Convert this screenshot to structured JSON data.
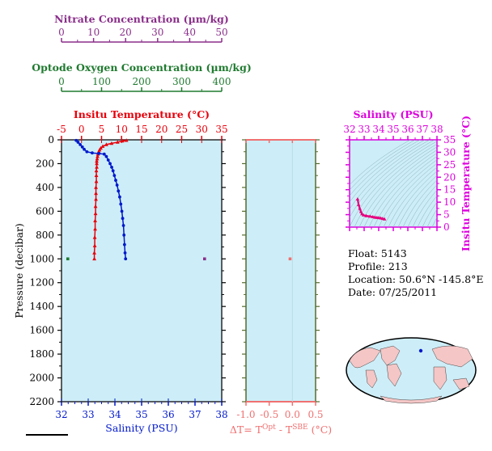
{
  "colors": {
    "plot_bg": "#cdeef8",
    "nitrate": "#8a2f8a",
    "oxygen": "#1f7a2f",
    "temperature": "#e8000b",
    "salinity": "#0018cc",
    "delta": "#f07070",
    "ts_axis": "#dd00dd",
    "ts_line": "#e6007e",
    "frame": "#2a2a2a",
    "land": "#f5c6c6",
    "ocean": "#cdeef8"
  },
  "nitrate_axis": {
    "label": "Nitrate Concentration (µm/kg)",
    "ticks": [
      "0",
      "10",
      "20",
      "30",
      "40",
      "50"
    ]
  },
  "oxygen_axis": {
    "label": "Optode Oxygen Concentration (µm/kg)",
    "ticks": [
      "0",
      "100",
      "200",
      "300",
      "400"
    ]
  },
  "main_plot": {
    "temp_label": "Insitu Temperature (°C)",
    "temp_ticks": [
      "-5",
      "0",
      "5",
      "10",
      "15",
      "20",
      "25",
      "30",
      "35"
    ],
    "pressure_label": "Pressure (decibar)",
    "pressure_ticks": [
      "0",
      "200",
      "400",
      "600",
      "800",
      "1000",
      "1200",
      "1400",
      "1600",
      "1800",
      "2000",
      "2200"
    ],
    "sal_label": "Salinity (PSU)",
    "sal_ticks": [
      "32",
      "33",
      "34",
      "35",
      "36",
      "37",
      "38"
    ]
  },
  "delta_plot": {
    "label_prefix": "ΔT= T",
    "sup1": "Opt",
    "label_mid": " - T",
    "sup2": "SBE",
    "label_suffix": " (°C)",
    "ticks": [
      "-1.0",
      "-0.5",
      "0.0",
      "0.5"
    ]
  },
  "ts_plot": {
    "sal_label": "Salinity (PSU)",
    "sal_ticks": [
      "32",
      "33",
      "34",
      "35",
      "36",
      "37",
      "38"
    ],
    "temp_label": "Insitu Temperature (°C)",
    "temp_ticks": [
      "0",
      "5",
      "10",
      "15",
      "20",
      "25",
      "30",
      "35"
    ]
  },
  "info": {
    "float": "Float:  5143",
    "profile": "Profile:  213",
    "location": "Location:  50.6°N  -145.8°E",
    "date": "Date:  07/25/2011"
  },
  "chart_data": [
    {
      "type": "line",
      "title": "",
      "xlabel": "Insitu Temperature (°C)",
      "ylabel": "Pressure (decibar)",
      "xlim": [
        -5,
        35
      ],
      "ylim": [
        2200,
        0
      ],
      "series": [
        {
          "name": "Insitu Temperature (°C)",
          "x": [
            11.2,
            10.2,
            9.0,
            7.5,
            6.2,
            5.3,
            4.8,
            4.5,
            4.3,
            4.1,
            4.0,
            3.9,
            3.8,
            3.8,
            3.8,
            3.7,
            3.7,
            3.7,
            3.6,
            3.6,
            3.6,
            3.5,
            3.5,
            3.4,
            3.4,
            3.3,
            3.3,
            3.2,
            3.2
          ],
          "y": [
            5,
            10,
            20,
            30,
            40,
            55,
            70,
            85,
            100,
            120,
            140,
            160,
            180,
            200,
            230,
            260,
            300,
            350,
            400,
            450,
            500,
            560,
            620,
            680,
            750,
            820,
            890,
            950,
            1000
          ]
        },
        {
          "name": "Salinity (PSU)",
          "x": [
            32.55,
            32.62,
            32.7,
            32.78,
            32.85,
            32.95,
            33.15,
            33.4,
            33.6,
            33.68,
            33.75,
            33.82,
            33.88,
            33.93,
            33.98,
            34.03,
            34.08,
            34.13,
            34.18,
            34.22,
            34.26,
            34.29,
            34.32,
            34.34,
            34.36,
            34.38,
            34.4
          ],
          "y": [
            5,
            20,
            40,
            60,
            80,
            100,
            110,
            115,
            120,
            140,
            170,
            200,
            230,
            260,
            300,
            340,
            380,
            430,
            480,
            540,
            600,
            660,
            720,
            800,
            880,
            950,
            1000
          ]
        }
      ]
    },
    {
      "type": "scatter",
      "xlabel": "ΔT= TOpt - TSBE (°C)",
      "xlim": [
        -1.0,
        0.5
      ],
      "ylim": [
        2200,
        0
      ],
      "series": [
        {
          "x": [
            -0.05
          ],
          "y": [
            1000
          ]
        }
      ]
    },
    {
      "type": "line",
      "xlabel": "Salinity (PSU)",
      "ylabel": "Insitu Temperature (°C)",
      "xlim": [
        32,
        38
      ],
      "ylim": [
        0,
        35
      ],
      "series": [
        {
          "x": [
            32.55,
            32.62,
            32.7,
            32.78,
            32.85,
            32.95,
            33.15,
            33.4,
            33.6,
            33.75,
            33.88,
            34.0,
            34.13,
            34.26,
            34.4
          ],
          "y": [
            11.2,
            9.0,
            7.5,
            6.2,
            5.3,
            4.8,
            4.5,
            4.3,
            4.1,
            3.9,
            3.8,
            3.7,
            3.6,
            3.4,
            3.2
          ]
        }
      ]
    }
  ]
}
